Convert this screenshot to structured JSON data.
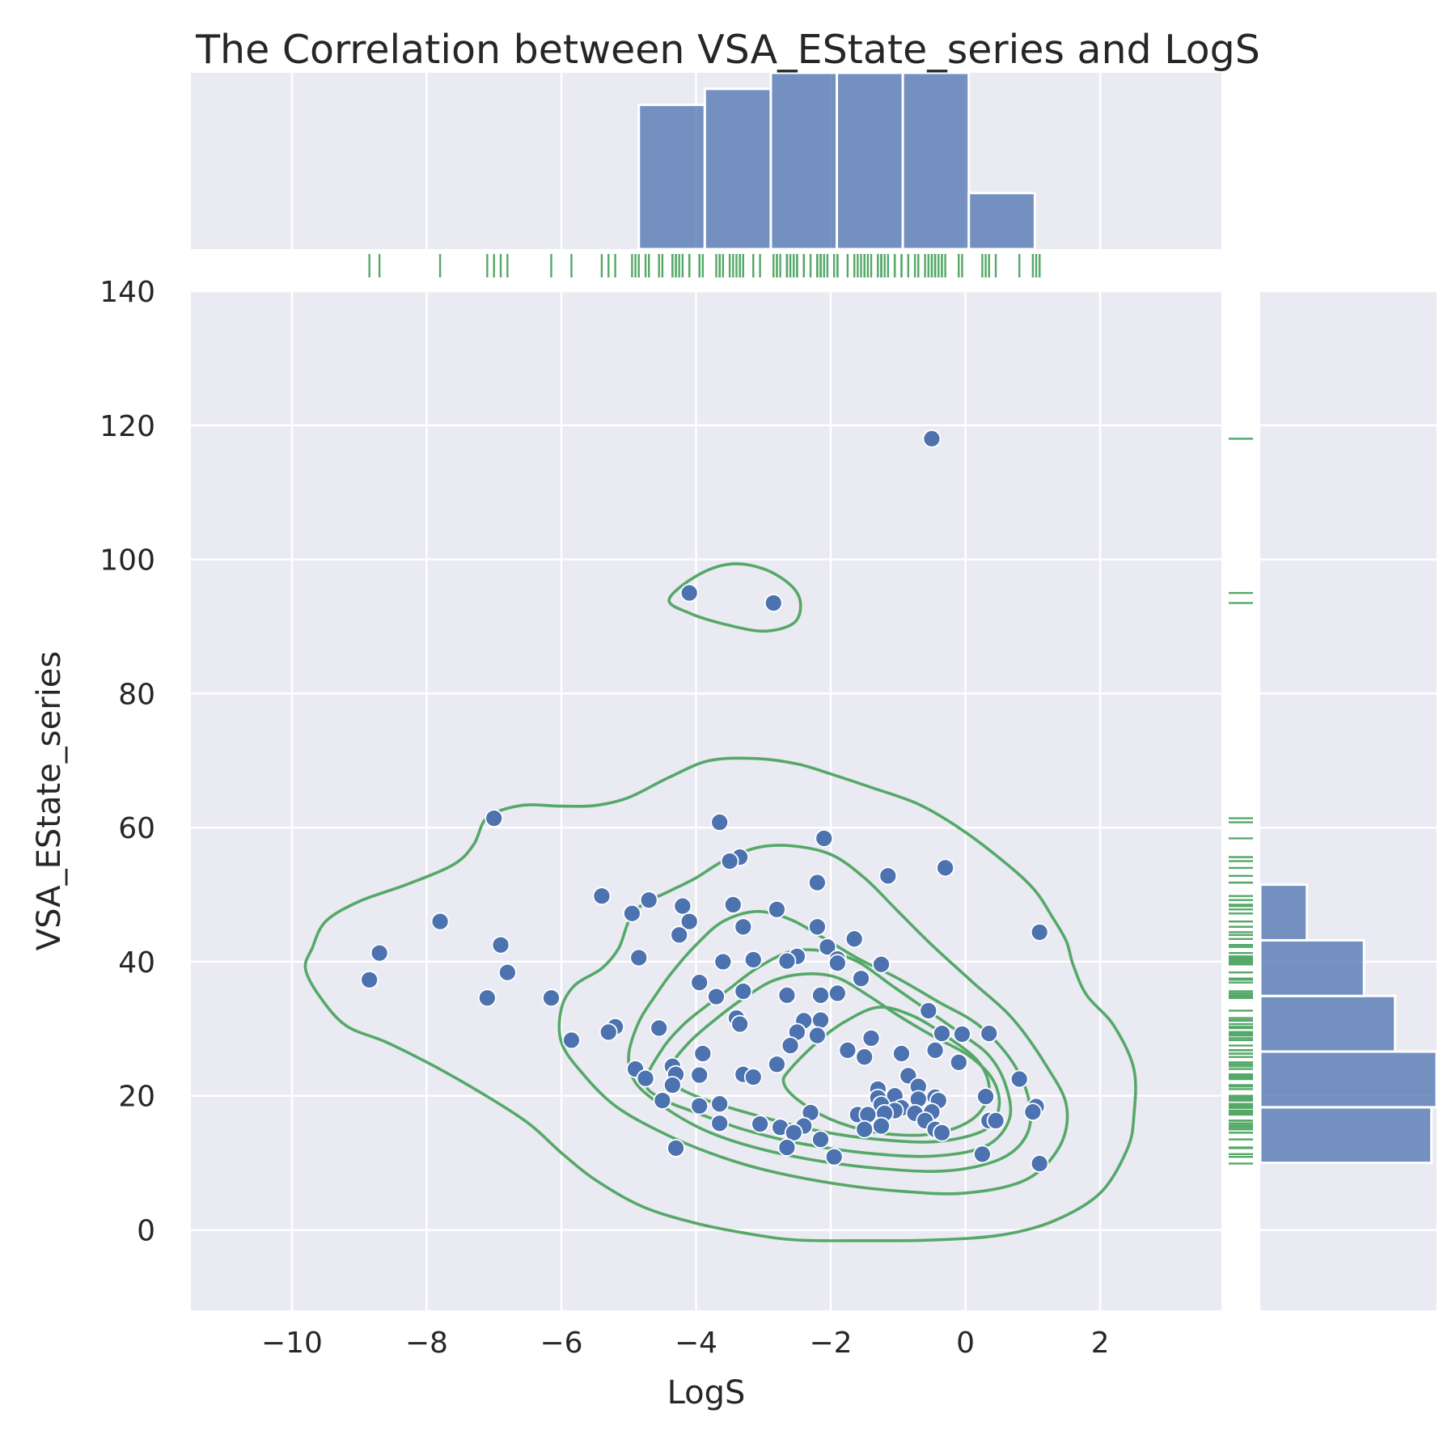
{
  "chart_data": {
    "type": "scatter",
    "title": "The Correlation between VSA_EState_series and LogS",
    "xlabel": "LogS",
    "ylabel": "VSA_EState_series",
    "xlim": [
      -11.5,
      3.8
    ],
    "ylim": [
      -12,
      140
    ],
    "xticks": [
      "−10",
      "−8",
      "−6",
      "−4",
      "−2",
      "0",
      "2"
    ],
    "xtick_values": [
      -10,
      -8,
      -6,
      -4,
      -2,
      0,
      2
    ],
    "yticks": [
      "0",
      "20",
      "40",
      "60",
      "80",
      "100",
      "120",
      "140"
    ],
    "ytick_values": [
      0,
      20,
      40,
      60,
      80,
      100,
      120,
      140
    ],
    "grid": true,
    "background": "#eaeaf2",
    "point_color": "#4c72b0",
    "kde_color": "#55a868",
    "rug_color": "#55a868",
    "hist_color": "#4c72b0",
    "points": [
      [
        -0.5,
        118.0
      ],
      [
        -4.1,
        95.0
      ],
      [
        -2.85,
        93.5
      ],
      [
        -7.0,
        61.4
      ],
      [
        -3.65,
        60.8
      ],
      [
        -2.1,
        58.4
      ],
      [
        -3.35,
        55.6
      ],
      [
        -3.5,
        55.0
      ],
      [
        -0.3,
        54.0
      ],
      [
        -1.15,
        52.8
      ],
      [
        -2.2,
        51.8
      ],
      [
        -5.4,
        49.8
      ],
      [
        -4.7,
        49.2
      ],
      [
        -3.45,
        48.5
      ],
      [
        -4.2,
        48.3
      ],
      [
        -2.8,
        47.8
      ],
      [
        -4.95,
        47.2
      ],
      [
        -4.1,
        46.0
      ],
      [
        -7.8,
        46.0
      ],
      [
        -3.3,
        45.2
      ],
      [
        -2.2,
        45.2
      ],
      [
        1.1,
        44.4
      ],
      [
        -4.25,
        44.0
      ],
      [
        -1.65,
        43.4
      ],
      [
        -6.9,
        42.5
      ],
      [
        -2.05,
        42.2
      ],
      [
        -8.7,
        41.3
      ],
      [
        -2.5,
        40.8
      ],
      [
        -4.85,
        40.6
      ],
      [
        -1.9,
        40.4
      ],
      [
        -3.15,
        40.3
      ],
      [
        -2.65,
        40.1
      ],
      [
        -3.6,
        40.0
      ],
      [
        -1.9,
        39.8
      ],
      [
        -1.25,
        39.6
      ],
      [
        -6.8,
        38.4
      ],
      [
        -8.85,
        37.3
      ],
      [
        -1.55,
        37.5
      ],
      [
        -3.95,
        36.9
      ],
      [
        -3.3,
        35.6
      ],
      [
        -1.9,
        35.3
      ],
      [
        -2.65,
        35.0
      ],
      [
        -2.15,
        35.0
      ],
      [
        -3.7,
        34.8
      ],
      [
        -7.1,
        34.6
      ],
      [
        -6.15,
        34.6
      ],
      [
        -0.55,
        32.7
      ],
      [
        -3.4,
        31.6
      ],
      [
        -2.15,
        31.3
      ],
      [
        -2.4,
        31.2
      ],
      [
        -3.35,
        30.7
      ],
      [
        -5.2,
        30.3
      ],
      [
        -5.3,
        29.5
      ],
      [
        -4.55,
        30.1
      ],
      [
        -2.5,
        29.5
      ],
      [
        -0.35,
        29.3
      ],
      [
        -0.05,
        29.2
      ],
      [
        0.35,
        29.3
      ],
      [
        -2.2,
        29.0
      ],
      [
        -1.4,
        28.6
      ],
      [
        -5.85,
        28.3
      ],
      [
        -2.6,
        27.5
      ],
      [
        -1.75,
        26.8
      ],
      [
        -0.45,
        26.8
      ],
      [
        -3.9,
        26.3
      ],
      [
        -0.95,
        26.3
      ],
      [
        -1.5,
        25.8
      ],
      [
        -0.1,
        25.0
      ],
      [
        -2.8,
        24.7
      ],
      [
        -4.35,
        24.4
      ],
      [
        -4.9,
        24.0
      ],
      [
        -0.85,
        23.0
      ],
      [
        -3.3,
        23.2
      ],
      [
        -3.15,
        22.8
      ],
      [
        -4.3,
        23.2
      ],
      [
        -3.95,
        23.1
      ],
      [
        -4.75,
        22.6
      ],
      [
        0.8,
        22.5
      ],
      [
        -4.35,
        21.6
      ],
      [
        -0.7,
        21.4
      ],
      [
        -1.3,
        21.0
      ],
      [
        -1.05,
        20.0
      ],
      [
        -0.45,
        19.8
      ],
      [
        -1.3,
        19.7
      ],
      [
        0.3,
        19.9
      ],
      [
        -0.7,
        19.5
      ],
      [
        -1.25,
        18.7
      ],
      [
        -0.4,
        19.3
      ],
      [
        -4.5,
        19.3
      ],
      [
        -3.95,
        18.5
      ],
      [
        -3.65,
        18.8
      ],
      [
        1.05,
        18.4
      ],
      [
        -0.95,
        18.2
      ],
      [
        -1.05,
        17.8
      ],
      [
        -0.5,
        17.6
      ],
      [
        -1.2,
        17.4
      ],
      [
        -0.75,
        17.4
      ],
      [
        1.0,
        17.6
      ],
      [
        -2.3,
        17.5
      ],
      [
        -1.6,
        17.2
      ],
      [
        -1.45,
        17.2
      ],
      [
        -0.6,
        16.3
      ],
      [
        0.35,
        16.3
      ],
      [
        0.45,
        16.3
      ],
      [
        -3.65,
        15.9
      ],
      [
        -3.05,
        15.8
      ],
      [
        -2.4,
        15.5
      ],
      [
        -2.75,
        15.3
      ],
      [
        -1.25,
        15.5
      ],
      [
        -1.5,
        15.0
      ],
      [
        -0.45,
        15.0
      ],
      [
        -0.35,
        14.5
      ],
      [
        -2.55,
        14.5
      ],
      [
        -2.15,
        13.5
      ],
      [
        -2.65,
        12.3
      ],
      [
        -4.3,
        12.2
      ],
      [
        0.25,
        11.3
      ],
      [
        -1.95,
        10.9
      ],
      [
        1.1,
        9.9
      ]
    ],
    "histx": {
      "edges": [
        -4.85,
        -3.87,
        -2.89,
        -1.91,
        -0.93,
        0.05,
        1.03
      ],
      "counts": [
        18,
        20,
        22,
        22,
        22,
        7
      ]
    },
    "histy": {
      "edges": [
        10.0,
        18.3,
        26.6,
        34.9,
        43.2,
        51.5
      ],
      "counts": [
        33,
        34,
        26,
        20,
        9
      ]
    },
    "kde_contours": [
      [
        [
          -9.7,
          42
        ],
        [
          -9.5,
          46
        ],
        [
          -9.0,
          49
        ],
        [
          -8.3,
          51.5
        ],
        [
          -7.6,
          54.5
        ],
        [
          -7.3,
          57.5
        ],
        [
          -7.1,
          61.5
        ],
        [
          -6.6,
          63.3
        ],
        [
          -6.0,
          63.2
        ],
        [
          -5.5,
          63.3
        ],
        [
          -5.0,
          64.5
        ],
        [
          -4.4,
          67.5
        ],
        [
          -3.8,
          70
        ],
        [
          -3.1,
          70.3
        ],
        [
          -2.5,
          69.5
        ],
        [
          -2.0,
          68
        ],
        [
          -1.4,
          66
        ],
        [
          -0.7,
          63.5
        ],
        [
          -0.1,
          60
        ],
        [
          0.5,
          55.5
        ],
        [
          1.0,
          51
        ],
        [
          1.3,
          46.5
        ],
        [
          1.5,
          43
        ],
        [
          1.6,
          39.5
        ],
        [
          1.8,
          35
        ],
        [
          2.2,
          30.5
        ],
        [
          2.5,
          24
        ],
        [
          2.5,
          17
        ],
        [
          2.4,
          12
        ],
        [
          2.0,
          5.5
        ],
        [
          1.3,
          1.3
        ],
        [
          0.5,
          -0.8
        ],
        [
          -0.5,
          -1.5
        ],
        [
          -1.5,
          -1.6
        ],
        [
          -2.5,
          -1.5
        ],
        [
          -3.2,
          -0.6
        ],
        [
          -4.0,
          1.0
        ],
        [
          -4.8,
          3.5
        ],
        [
          -5.5,
          7.5
        ],
        [
          -6.0,
          11.5
        ],
        [
          -6.5,
          16
        ],
        [
          -7.2,
          20.5
        ],
        [
          -7.9,
          24.5
        ],
        [
          -8.6,
          28
        ],
        [
          -9.2,
          30.5
        ],
        [
          -9.6,
          35
        ],
        [
          -9.8,
          39
        ]
      ],
      [
        [
          -6.0,
          33
        ],
        [
          -5.8,
          36.5
        ],
        [
          -5.4,
          39
        ],
        [
          -5.15,
          42
        ],
        [
          -5.0,
          46
        ],
        [
          -4.8,
          48.5
        ],
        [
          -4.4,
          50.5
        ],
        [
          -4.0,
          52.5
        ],
        [
          -3.6,
          55
        ],
        [
          -3.1,
          57
        ],
        [
          -2.6,
          57.3
        ],
        [
          -2.0,
          56
        ],
        [
          -1.5,
          52.5
        ],
        [
          -1.0,
          47.5
        ],
        [
          -0.5,
          42.5
        ],
        [
          0.1,
          37
        ],
        [
          0.7,
          31.5
        ],
        [
          1.2,
          24.5
        ],
        [
          1.5,
          18.5
        ],
        [
          1.4,
          12.5
        ],
        [
          0.9,
          7.5
        ],
        [
          0.0,
          5.5
        ],
        [
          -1.0,
          5.8
        ],
        [
          -2.0,
          7
        ],
        [
          -3.0,
          9
        ],
        [
          -3.8,
          11.5
        ],
        [
          -4.5,
          14.5
        ],
        [
          -5.2,
          18.5
        ],
        [
          -5.7,
          23.5
        ],
        [
          -6.0,
          28
        ]
      ],
      [
        [
          -5.0,
          26
        ],
        [
          -4.85,
          31
        ],
        [
          -4.6,
          35
        ],
        [
          -4.35,
          38.5
        ],
        [
          -4.0,
          42.5
        ],
        [
          -3.6,
          46
        ],
        [
          -3.1,
          47.5
        ],
        [
          -2.6,
          46.3
        ],
        [
          -2.1,
          43.5
        ],
        [
          -1.6,
          40.5
        ],
        [
          -1.0,
          37.5
        ],
        [
          -0.4,
          34
        ],
        [
          0.2,
          30.5
        ],
        [
          0.7,
          25
        ],
        [
          0.95,
          19
        ],
        [
          0.9,
          14
        ],
        [
          0.5,
          10.5
        ],
        [
          -0.3,
          8.8
        ],
        [
          -1.3,
          9.2
        ],
        [
          -2.3,
          10.5
        ],
        [
          -3.2,
          12.5
        ],
        [
          -3.9,
          15
        ],
        [
          -4.5,
          18.5
        ],
        [
          -4.9,
          22
        ]
      ],
      [
        [
          -4.75,
          22
        ],
        [
          -4.5,
          27
        ],
        [
          -4.2,
          30.5
        ],
        [
          -3.9,
          33
        ],
        [
          -3.5,
          36
        ],
        [
          -3.1,
          39
        ],
        [
          -2.6,
          41.5
        ],
        [
          -2.1,
          41.6
        ],
        [
          -1.6,
          40
        ],
        [
          -1.1,
          36.5
        ],
        [
          -0.6,
          33
        ],
        [
          -0.1,
          29.5
        ],
        [
          0.35,
          26
        ],
        [
          0.6,
          21.5
        ],
        [
          0.65,
          16.5
        ],
        [
          0.3,
          12.5
        ],
        [
          -0.5,
          11
        ],
        [
          -1.5,
          11.5
        ],
        [
          -2.5,
          13
        ],
        [
          -3.3,
          15
        ],
        [
          -4.0,
          17.5
        ],
        [
          -4.5,
          19.5
        ]
      ],
      [
        [
          -4.4,
          24
        ],
        [
          -4.1,
          28
        ],
        [
          -3.7,
          31.5
        ],
        [
          -3.3,
          34.5
        ],
        [
          -2.85,
          37.2
        ],
        [
          -2.35,
          38.2
        ],
        [
          -1.9,
          37.6
        ],
        [
          -1.45,
          35
        ],
        [
          -1.0,
          32
        ],
        [
          -0.5,
          29
        ],
        [
          0.05,
          26
        ],
        [
          0.4,
          22.5
        ],
        [
          0.5,
          18.5
        ],
        [
          0.3,
          15
        ],
        [
          -0.4,
          13.2
        ],
        [
          -1.3,
          13.5
        ],
        [
          -2.2,
          14.8
        ],
        [
          -3.0,
          16.8
        ],
        [
          -3.8,
          19.2
        ],
        [
          -4.3,
          21.5
        ]
      ],
      [
        [
          -2.6,
          24
        ],
        [
          -2.2,
          28
        ],
        [
          -1.8,
          31
        ],
        [
          -1.3,
          33.2
        ],
        [
          -0.8,
          32
        ],
        [
          -0.3,
          29
        ],
        [
          0.2,
          25
        ],
        [
          0.35,
          20.5
        ],
        [
          0.1,
          16.5
        ],
        [
          -0.5,
          14.3
        ],
        [
          -1.3,
          14.5
        ],
        [
          -2.0,
          16.5
        ],
        [
          -2.5,
          19.5
        ],
        [
          -2.7,
          22
        ]
      ],
      [
        [
          -4.4,
          94
        ],
        [
          -4.0,
          97.5
        ],
        [
          -3.5,
          99.3
        ],
        [
          -3.0,
          98.6
        ],
        [
          -2.6,
          96.2
        ],
        [
          -2.45,
          93.5
        ],
        [
          -2.55,
          90.5
        ],
        [
          -3.0,
          89.3
        ],
        [
          -3.6,
          90.4
        ],
        [
          -4.1,
          92
        ]
      ]
    ]
  }
}
